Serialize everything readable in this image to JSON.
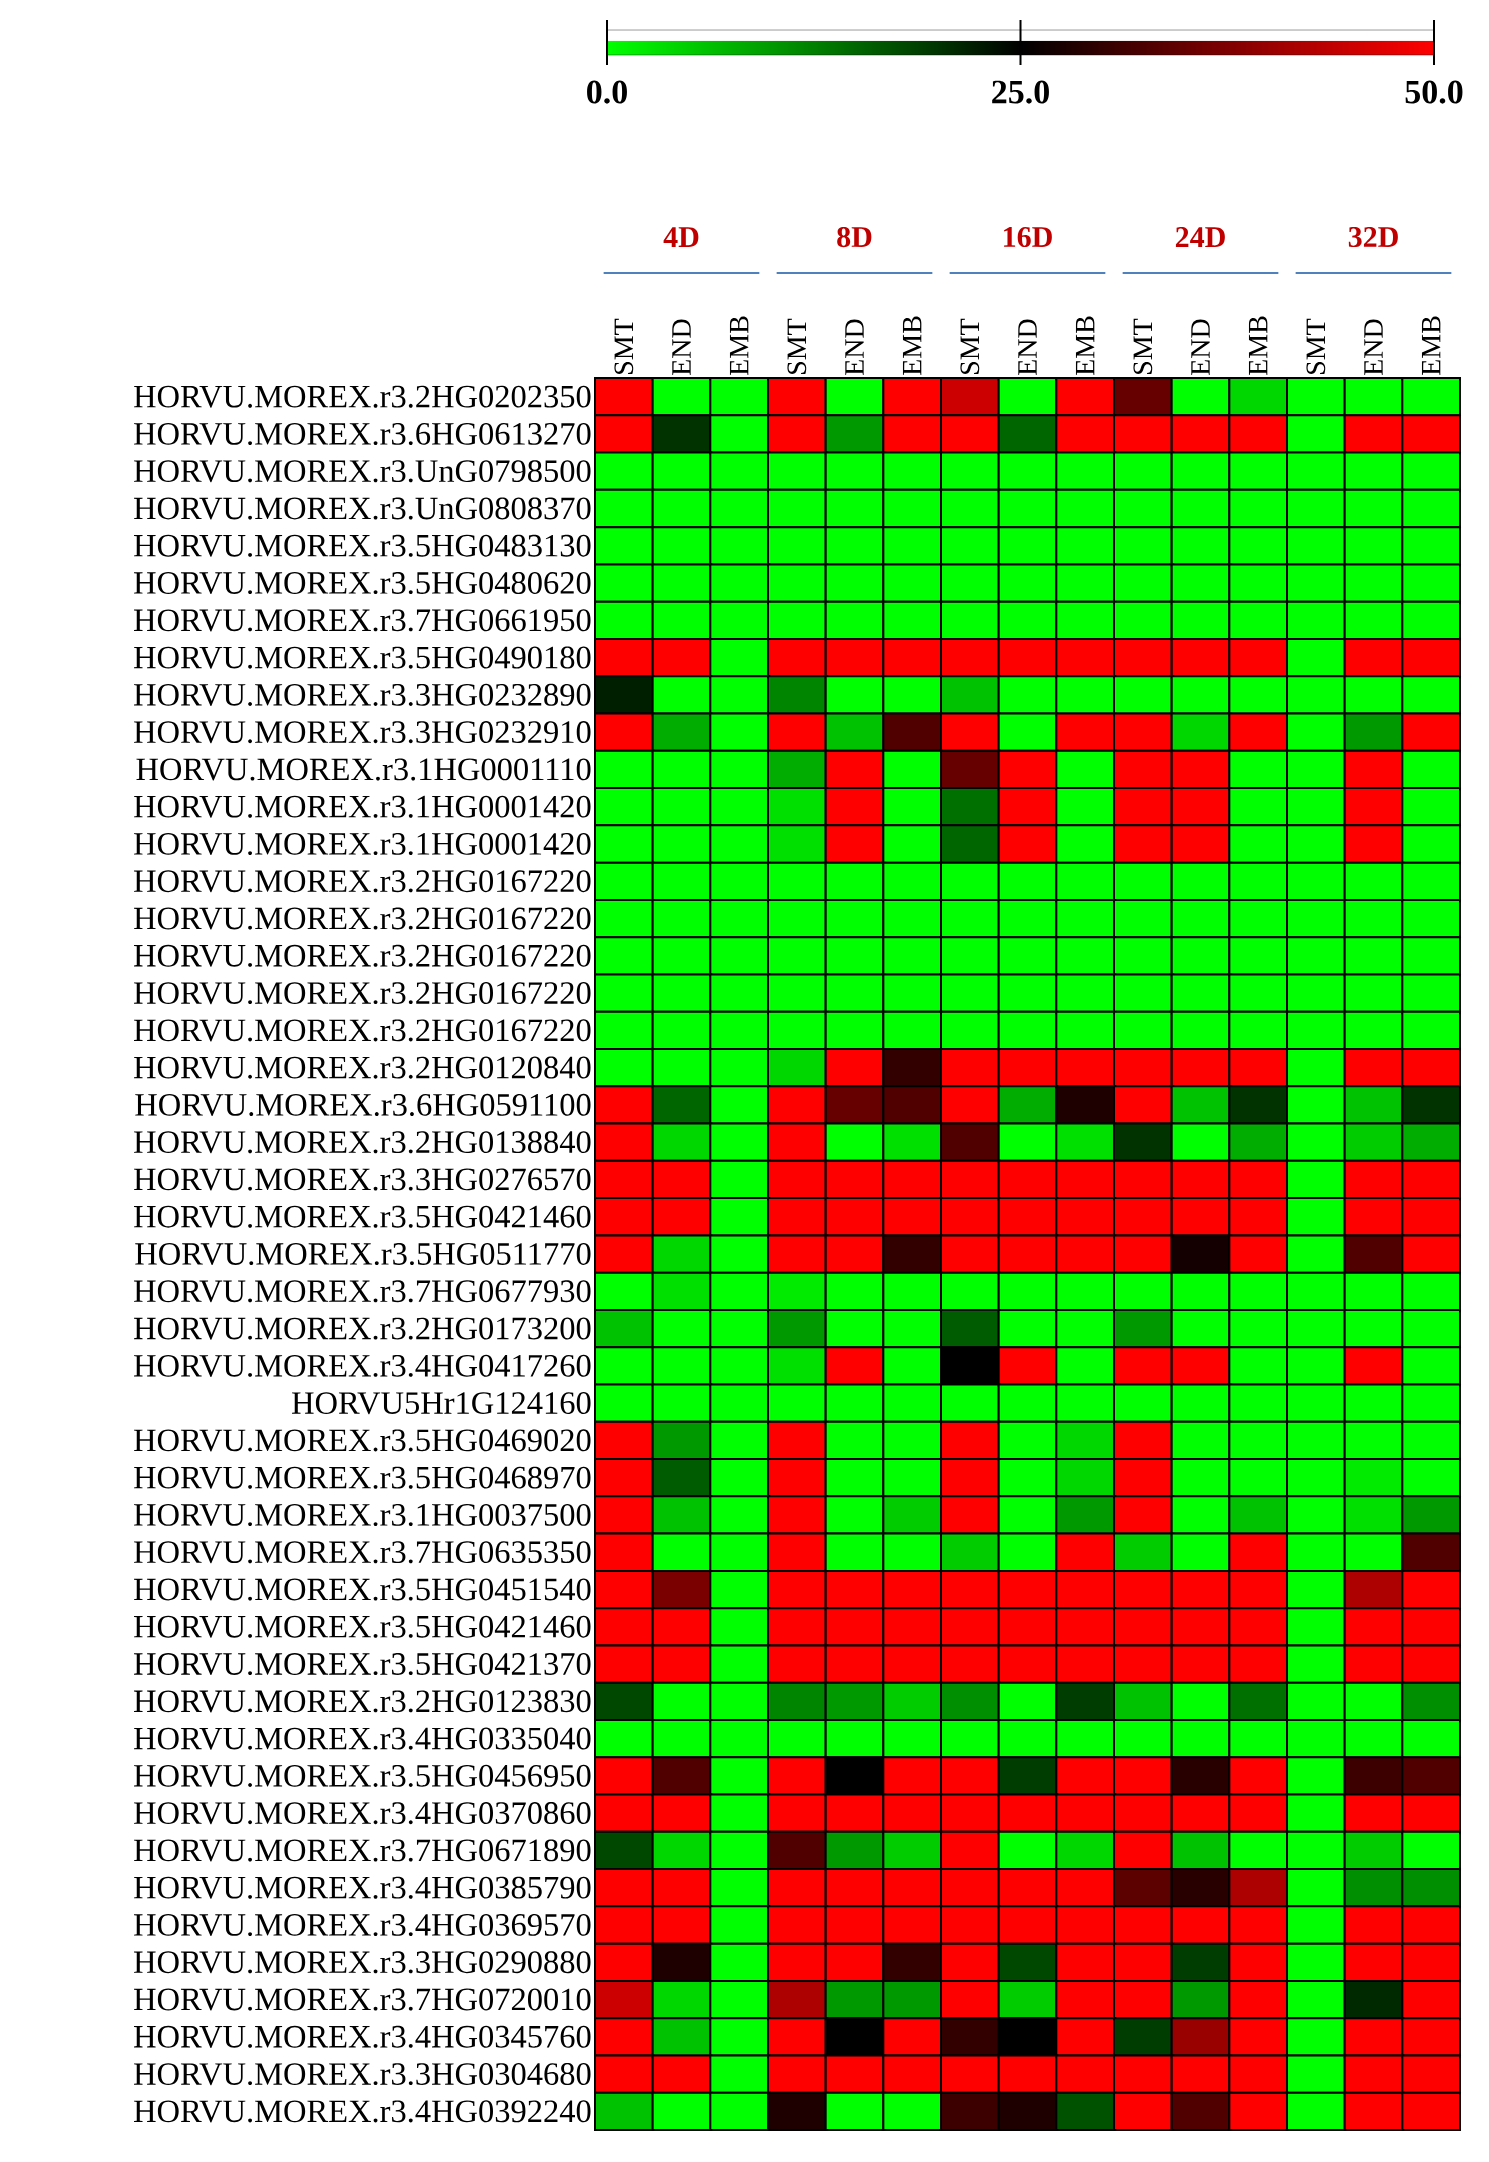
{
  "chart_data": {
    "type": "heatmap",
    "categories": [
      "SMT",
      "END",
      "EMB",
      "SMT",
      "END",
      "EMB",
      "SMT",
      "END",
      "EMB",
      "SMT",
      "END",
      "EMB",
      "SMT",
      "END",
      "EMB"
    ],
    "annotations": [
      "4D",
      "8D",
      "16D",
      "24D",
      "32D"
    ],
    "y_categories": [
      "HORVU.MOREX.r3.2HG0202350",
      "HORVU.MOREX.r3.6HG0613270",
      "HORVU.MOREX.r3.UnG0798500",
      "HORVU.MOREX.r3.UnG0808370",
      "HORVU.MOREX.r3.5HG0483130",
      "HORVU.MOREX.r3.5HG0480620",
      "HORVU.MOREX.r3.7HG0661950",
      "HORVU.MOREX.r3.5HG0490180",
      "HORVU.MOREX.r3.3HG0232890",
      "HORVU.MOREX.r3.3HG0232910",
      "HORVU.MOREX.r3.1HG0001110",
      "HORVU.MOREX.r3.1HG0001420",
      "HORVU.MOREX.r3.1HG0001420",
      "HORVU.MOREX.r3.2HG0167220",
      "HORVU.MOREX.r3.2HG0167220",
      "HORVU.MOREX.r3.2HG0167220",
      "HORVU.MOREX.r3.2HG0167220",
      "HORVU.MOREX.r3.2HG0167220",
      "HORVU.MOREX.r3.2HG0120840",
      "HORVU.MOREX.r3.6HG0591100",
      "HORVU.MOREX.r3.2HG0138840",
      "HORVU.MOREX.r3.3HG0276570",
      "HORVU.MOREX.r3.5HG0421460",
      "HORVU.MOREX.r3.5HG0511770",
      "HORVU.MOREX.r3.7HG0677930",
      "HORVU.MOREX.r3.2HG0173200",
      "HORVU.MOREX.r3.4HG0417260",
      "HORVU5Hr1G124160",
      "HORVU.MOREX.r3.5HG0469020",
      "HORVU.MOREX.r3.5HG0468970",
      "HORVU.MOREX.r3.1HG0037500",
      "HORVU.MOREX.r3.7HG0635350",
      "HORVU.MOREX.r3.5HG0451540",
      "HORVU.MOREX.r3.5HG0421460",
      "HORVU.MOREX.r3.5HG0421370",
      "HORVU.MOREX.r3.2HG0123830",
      "HORVU.MOREX.r3.4HG0335040",
      "HORVU.MOREX.r3.5HG0456950",
      "HORVU.MOREX.r3.4HG0370860",
      "HORVU.MOREX.r3.7HG0671890",
      "HORVU.MOREX.r3.4HG0385790",
      "HORVU.MOREX.r3.4HG0369570",
      "HORVU.MOREX.r3.3HG0290880",
      "HORVU.MOREX.r3.7HG0720010",
      "HORVU.MOREX.r3.4HG0345760",
      "HORVU.MOREX.r3.3HG0304680",
      "HORVU.MOREX.r3.4HG0392240"
    ],
    "cells": [
      [
        50,
        0,
        0,
        50,
        0,
        50,
        45,
        0,
        50,
        35,
        0,
        4,
        0,
        0,
        0
      ],
      [
        50,
        20,
        0,
        50,
        10,
        50,
        50,
        15,
        50,
        50,
        50,
        50,
        0,
        50,
        50
      ],
      [
        0,
        0,
        0,
        0,
        0,
        0,
        0,
        0,
        0,
        0,
        0,
        0,
        0,
        0,
        0
      ],
      [
        0,
        0,
        0,
        0,
        0,
        0,
        0,
        0,
        0,
        0,
        0,
        0,
        0,
        0,
        0
      ],
      [
        0,
        0,
        0,
        0,
        0,
        0,
        0,
        0,
        0,
        0,
        0,
        0,
        0,
        0,
        0
      ],
      [
        0,
        0,
        0,
        0,
        0,
        0,
        0,
        0,
        0,
        0,
        0,
        0,
        0,
        0,
        0
      ],
      [
        0,
        0,
        0,
        0,
        0,
        0,
        0,
        0,
        0,
        0,
        0,
        0,
        0,
        0,
        0
      ],
      [
        50,
        50,
        0,
        50,
        50,
        50,
        50,
        50,
        50,
        50,
        50,
        50,
        0,
        50,
        50
      ],
      [
        22,
        0,
        0,
        12,
        0,
        0,
        6,
        0,
        0,
        0,
        0,
        0,
        0,
        0,
        0
      ],
      [
        50,
        8,
        0,
        50,
        6,
        33,
        50,
        0,
        50,
        50,
        4,
        50,
        0,
        10,
        50
      ],
      [
        0,
        0,
        0,
        8,
        50,
        0,
        35,
        50,
        0,
        50,
        50,
        0,
        0,
        50,
        0
      ],
      [
        0,
        0,
        0,
        3,
        50,
        0,
        14,
        50,
        0,
        50,
        50,
        0,
        0,
        50,
        0
      ],
      [
        0,
        0,
        0,
        3,
        50,
        0,
        15,
        50,
        0,
        50,
        50,
        0,
        0,
        50,
        0
      ],
      [
        0,
        0,
        0,
        0,
        0,
        0,
        0,
        0,
        0,
        0,
        0,
        0,
        0,
        0,
        0
      ],
      [
        0,
        0,
        0,
        0,
        0,
        0,
        0,
        0,
        0,
        0,
        0,
        0,
        0,
        0,
        0
      ],
      [
        0,
        0,
        0,
        0,
        0,
        0,
        0,
        0,
        0,
        0,
        0,
        0,
        0,
        0,
        0
      ],
      [
        0,
        0,
        0,
        0,
        0,
        0,
        0,
        0,
        0,
        0,
        0,
        0,
        0,
        0,
        0
      ],
      [
        0,
        0,
        0,
        0,
        0,
        0,
        0,
        0,
        0,
        0,
        0,
        0,
        0,
        0,
        0
      ],
      [
        0,
        0,
        0,
        4,
        50,
        30,
        50,
        50,
        50,
        50,
        50,
        50,
        0,
        50,
        50
      ],
      [
        50,
        15,
        0,
        50,
        35,
        33,
        50,
        8,
        28,
        50,
        6,
        20,
        0,
        6,
        20
      ],
      [
        50,
        4,
        0,
        50,
        0,
        3,
        33,
        0,
        3,
        20,
        0,
        8,
        0,
        5,
        8
      ],
      [
        50,
        50,
        0,
        50,
        50,
        50,
        50,
        50,
        50,
        50,
        50,
        50,
        0,
        50,
        50
      ],
      [
        50,
        50,
        0,
        50,
        50,
        50,
        50,
        50,
        50,
        50,
        50,
        50,
        0,
        50,
        50
      ],
      [
        50,
        4,
        0,
        50,
        50,
        30,
        50,
        50,
        50,
        50,
        27,
        50,
        0,
        33,
        50
      ],
      [
        0,
        3,
        0,
        2,
        0,
        0,
        0,
        0,
        0,
        0,
        0,
        0,
        0,
        0,
        0
      ],
      [
        6,
        0,
        0,
        10,
        0,
        0,
        16,
        0,
        0,
        10,
        0,
        0,
        0,
        0,
        0
      ],
      [
        0,
        0,
        0,
        3,
        50,
        0,
        25,
        50,
        0,
        50,
        50,
        0,
        0,
        50,
        0
      ],
      [
        0,
        0,
        0,
        0,
        0,
        0,
        0,
        0,
        0,
        0,
        0,
        0,
        0,
        0,
        0
      ],
      [
        50,
        10,
        0,
        50,
        0,
        0,
        50,
        0,
        4,
        50,
        0,
        0,
        0,
        0,
        0
      ],
      [
        50,
        16,
        0,
        50,
        0,
        0,
        50,
        0,
        4,
        50,
        0,
        0,
        0,
        2,
        0
      ],
      [
        50,
        6,
        0,
        50,
        0,
        5,
        50,
        0,
        10,
        50,
        0,
        6,
        0,
        3,
        10
      ],
      [
        50,
        0,
        0,
        50,
        0,
        0,
        5,
        0,
        50,
        5,
        0,
        50,
        0,
        0,
        33
      ],
      [
        50,
        37,
        0,
        50,
        50,
        50,
        50,
        50,
        50,
        50,
        50,
        50,
        0,
        42,
        50
      ],
      [
        50,
        50,
        0,
        50,
        50,
        50,
        50,
        50,
        50,
        50,
        50,
        50,
        0,
        50,
        50
      ],
      [
        50,
        50,
        0,
        50,
        50,
        50,
        50,
        50,
        50,
        50,
        50,
        50,
        0,
        50,
        50
      ],
      [
        18,
        0,
        0,
        12,
        10,
        5,
        11,
        0,
        19,
        6,
        0,
        14,
        0,
        0,
        11
      ],
      [
        0,
        0,
        0,
        0,
        0,
        0,
        0,
        0,
        0,
        0,
        0,
        0,
        0,
        0,
        0
      ],
      [
        50,
        33,
        0,
        50,
        25,
        50,
        50,
        19,
        50,
        50,
        29,
        50,
        0,
        31,
        33
      ],
      [
        50,
        50,
        0,
        50,
        50,
        50,
        50,
        50,
        50,
        50,
        50,
        50,
        0,
        50,
        50
      ],
      [
        18,
        4,
        0,
        33,
        10,
        5,
        50,
        0,
        4,
        50,
        6,
        0,
        0,
        5,
        0
      ],
      [
        50,
        50,
        0,
        50,
        50,
        50,
        50,
        50,
        50,
        34,
        29,
        42,
        0,
        11,
        11
      ],
      [
        50,
        50,
        0,
        50,
        50,
        50,
        50,
        50,
        50,
        50,
        50,
        50,
        0,
        50,
        50
      ],
      [
        50,
        28,
        0,
        50,
        50,
        30,
        50,
        18,
        50,
        50,
        19,
        50,
        0,
        50,
        50
      ],
      [
        45,
        4,
        0,
        42,
        10,
        10,
        50,
        5,
        50,
        50,
        10,
        50,
        0,
        21,
        50
      ],
      [
        50,
        6,
        0,
        50,
        25,
        50,
        30,
        25,
        50,
        19,
        40,
        50,
        0,
        50,
        50
      ],
      [
        50,
        50,
        0,
        50,
        50,
        50,
        50,
        50,
        50,
        50,
        50,
        50,
        0,
        50,
        50
      ],
      [
        6,
        0,
        0,
        28,
        0,
        0,
        31,
        28,
        17,
        50,
        33,
        50,
        0,
        50,
        50
      ]
    ],
    "clim": [
      0,
      50
    ],
    "cticks": [
      {
        "value": 0,
        "label": "0.0"
      },
      {
        "value": 25,
        "label": "25.0"
      },
      {
        "value": 50,
        "label": "50.0"
      }
    ]
  }
}
